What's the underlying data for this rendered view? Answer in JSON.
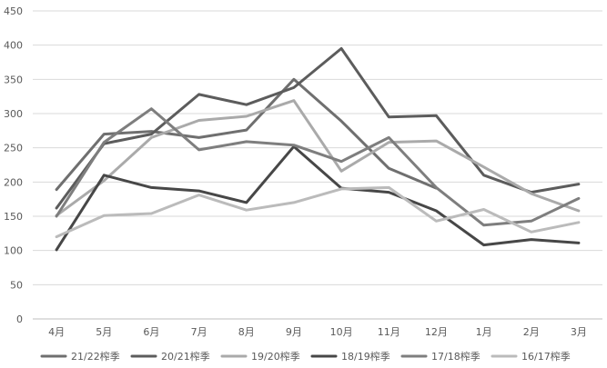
{
  "chart_data": {
    "type": "line",
    "categories": [
      "4月",
      "5月",
      "6月",
      "7月",
      "8月",
      "9月",
      "10月",
      "11月",
      "12月",
      "1月",
      "2月",
      "3月"
    ],
    "ylim": [
      0,
      450
    ],
    "yticks": [
      0,
      50,
      100,
      150,
      200,
      250,
      300,
      350,
      400,
      450
    ],
    "grid": true,
    "legend_position": "bottom",
    "series": [
      {
        "name": "21/22榨季",
        "color": "#6f6f6f",
        "values": [
          189,
          270,
          274,
          265,
          276,
          350,
          289,
          220,
          191,
          null,
          null,
          null
        ]
      },
      {
        "name": "20/21榨季",
        "color": "#5c5c5c",
        "values": [
          162,
          256,
          270,
          328,
          313,
          338,
          395,
          295,
          297,
          210,
          185,
          197
        ]
      },
      {
        "name": "19/20榨季",
        "color": "#aaaaaa",
        "values": [
          151,
          202,
          265,
          290,
          296,
          319,
          216,
          258,
          260,
          222,
          183,
          158
        ]
      },
      {
        "name": "18/19榨季",
        "color": "#474747",
        "values": [
          101,
          210,
          192,
          187,
          170,
          252,
          191,
          185,
          158,
          108,
          116,
          111
        ]
      },
      {
        "name": "17/18榨季",
        "color": "#7e7e7e",
        "values": [
          150,
          258,
          307,
          247,
          259,
          254,
          230,
          265,
          192,
          137,
          143,
          176
        ]
      },
      {
        "name": "16/17榨季",
        "color": "#bbbbbb",
        "values": [
          120,
          151,
          154,
          181,
          159,
          170,
          190,
          192,
          143,
          160,
          127,
          141
        ]
      }
    ]
  }
}
